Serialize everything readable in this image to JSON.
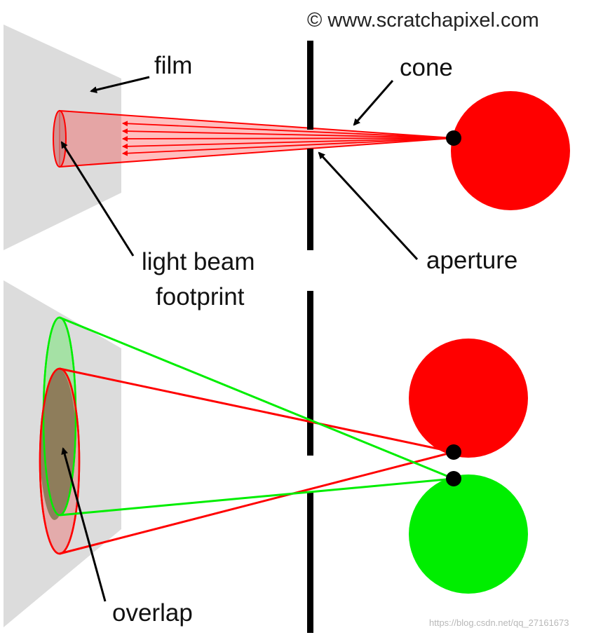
{
  "copyright": "© www.scratchapixel.com",
  "watermark": "https://blog.csdn.net/qq_27161673",
  "labels": {
    "film": "film",
    "cone": "cone",
    "light_beam_line1": "light beam",
    "light_beam_line2": "footprint",
    "aperture": "aperture",
    "overlap": "overlap"
  },
  "colors": {
    "red": "#ff0000",
    "green": "#00ee00",
    "film": "#dcdcdc",
    "aperture": "#000000",
    "overlap_fill": "#8b7a58"
  }
}
